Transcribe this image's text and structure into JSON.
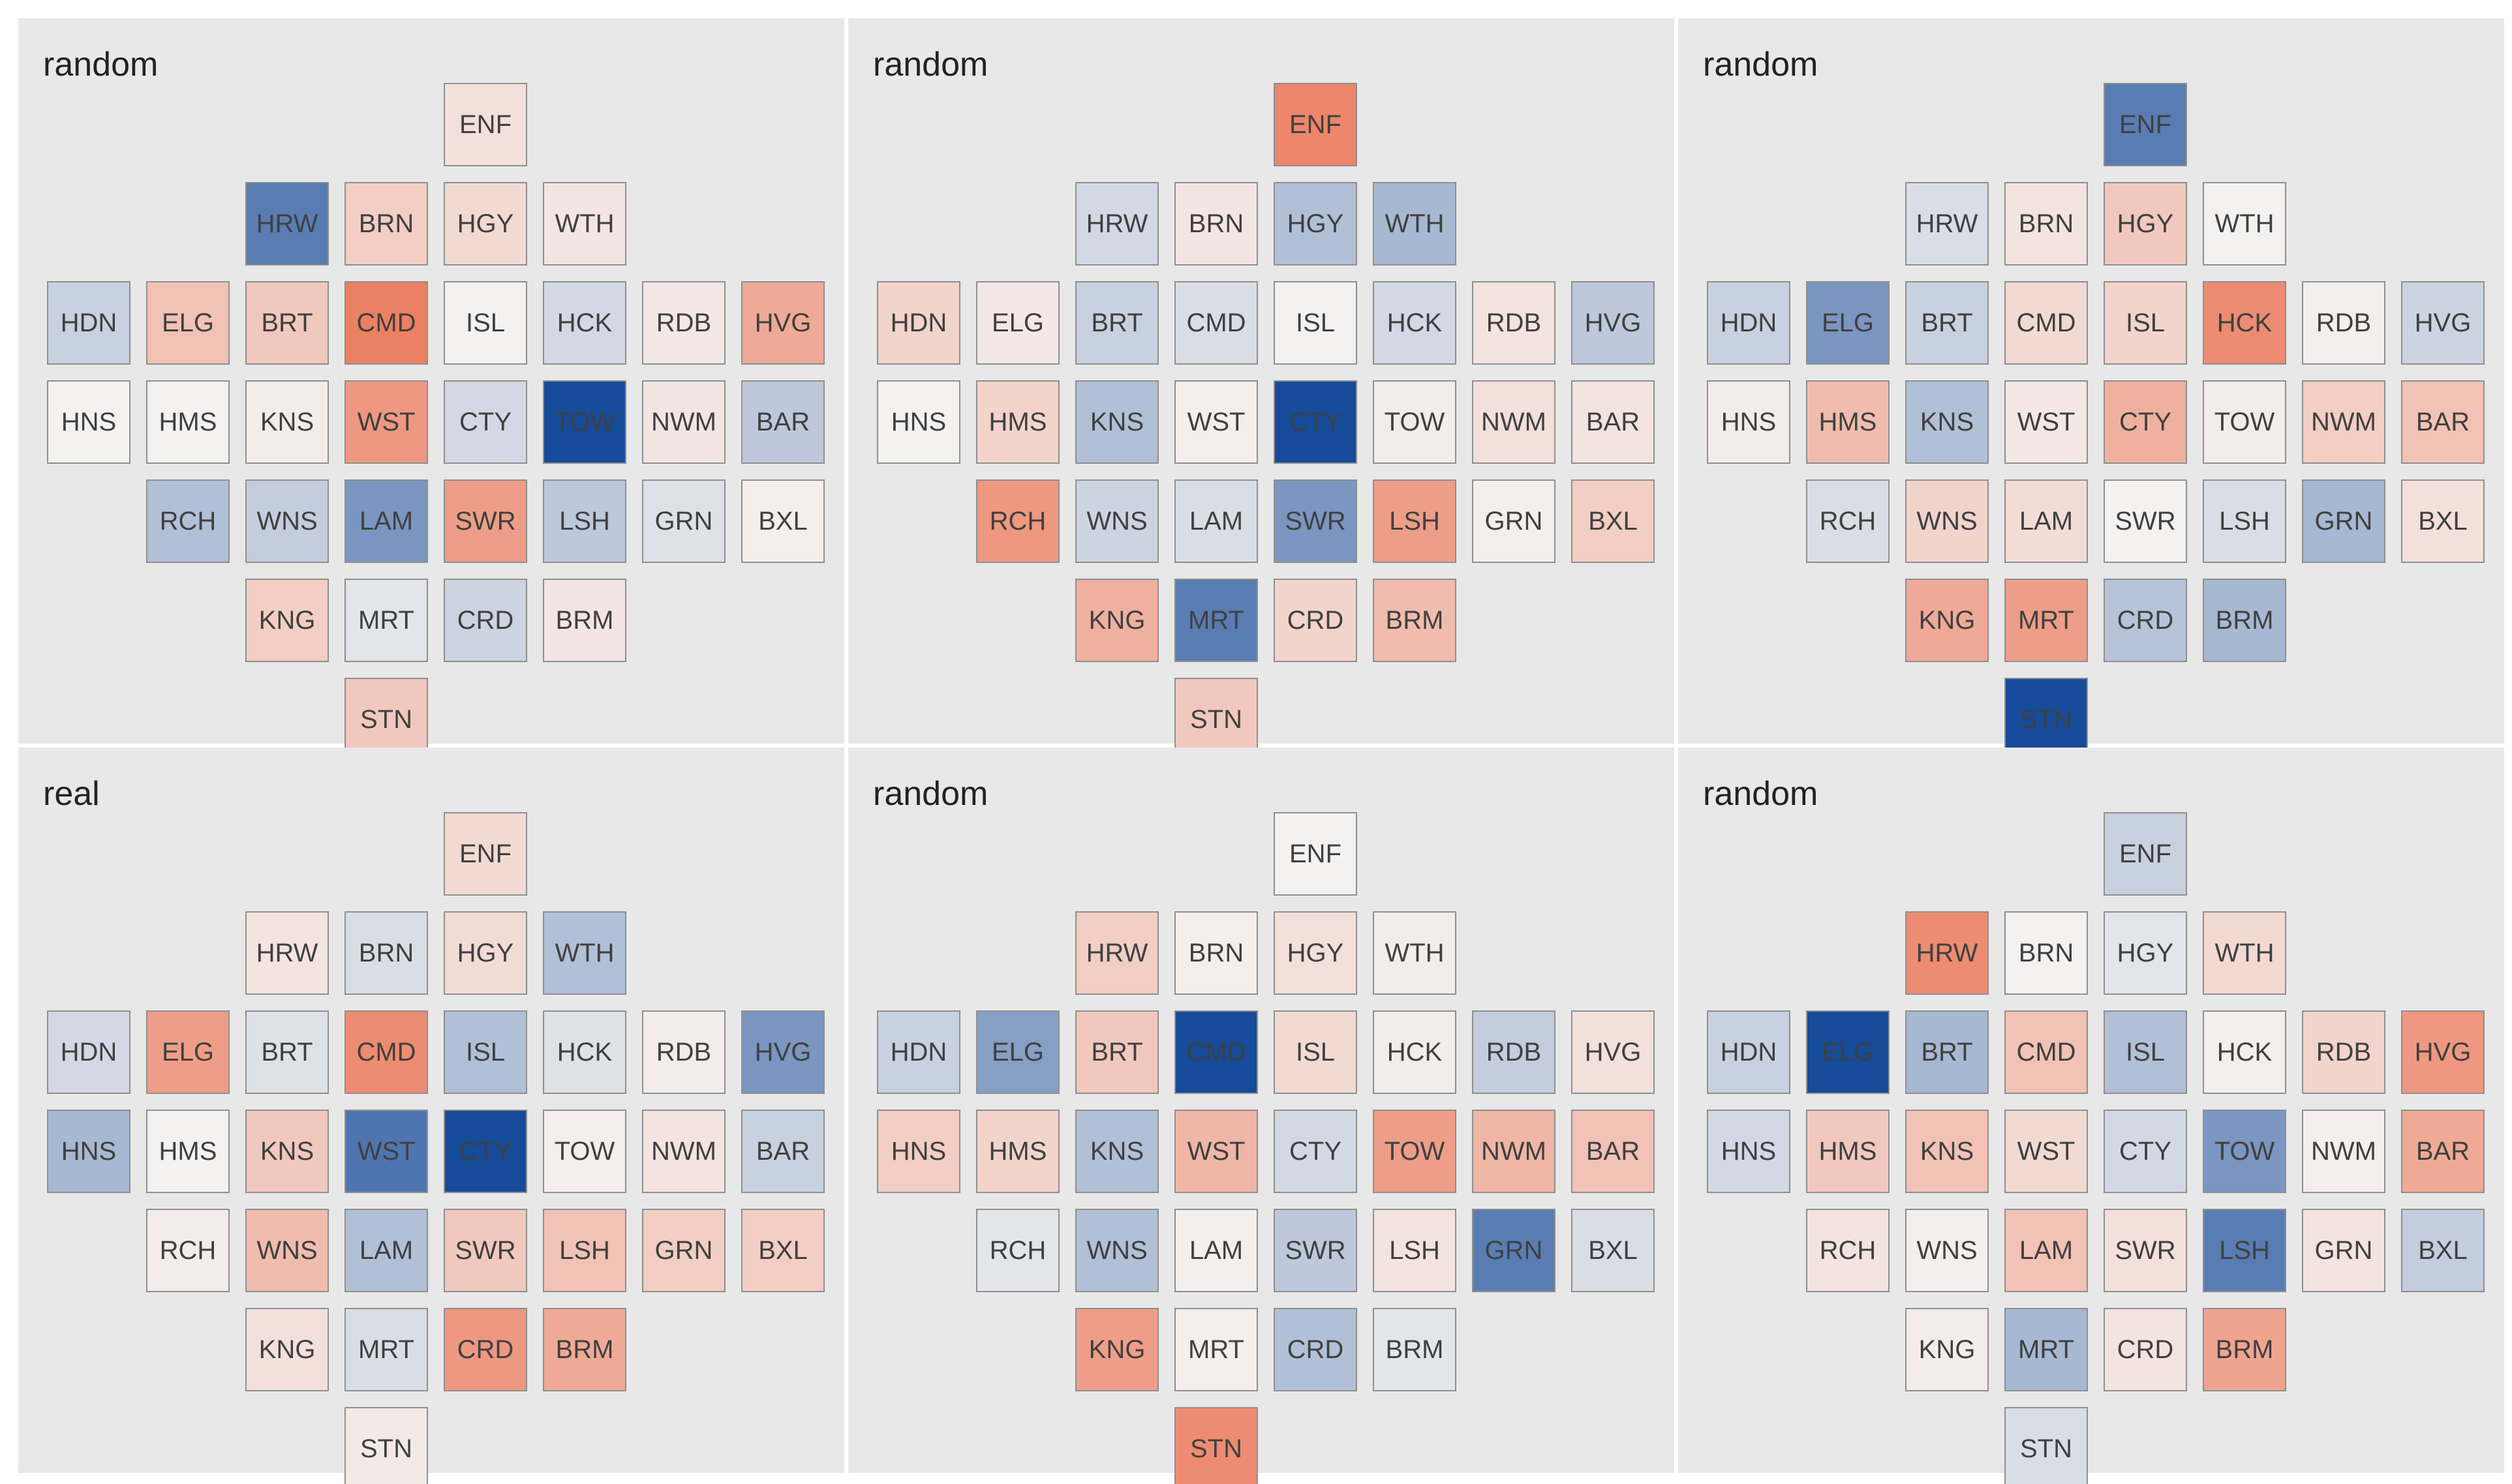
{
  "chart_data": {
    "type": "heatmap",
    "layout": "grid of 6 hexagon-style tile maps of London boroughs",
    "grid": {
      "rows": 2,
      "cols": 3
    },
    "color_scale": {
      "type": "diverging",
      "range": [
        -1,
        1
      ],
      "negative_color": "#164b99",
      "mid_color": "#f4f2f1",
      "positive_color": "#ec7a5b"
    },
    "tile_grid": {
      "ENF": [
        4,
        0
      ],
      "HRW": [
        2,
        1
      ],
      "BRN": [
        3,
        1
      ],
      "HGY": [
        4,
        1
      ],
      "WTH": [
        5,
        1
      ],
      "HDN": [
        0,
        2
      ],
      "ELG": [
        1,
        2
      ],
      "BRT": [
        2,
        2
      ],
      "CMD": [
        3,
        2
      ],
      "ISL": [
        4,
        2
      ],
      "HCK": [
        5,
        2
      ],
      "RDB": [
        6,
        2
      ],
      "HVG": [
        7,
        2
      ],
      "HNS": [
        0,
        3
      ],
      "HMS": [
        1,
        3
      ],
      "KNS": [
        2,
        3
      ],
      "WST": [
        3,
        3
      ],
      "CTY": [
        4,
        3
      ],
      "TOW": [
        5,
        3
      ],
      "NWM": [
        6,
        3
      ],
      "BAR": [
        7,
        3
      ],
      "RCH": [
        1,
        4
      ],
      "WNS": [
        2,
        4
      ],
      "LAM": [
        3,
        4
      ],
      "SWR": [
        4,
        4
      ],
      "LSH": [
        5,
        4
      ],
      "GRN": [
        6,
        4
      ],
      "BXL": [
        7,
        4
      ],
      "KNG": [
        2,
        5
      ],
      "MRT": [
        3,
        5
      ],
      "CRD": [
        4,
        5
      ],
      "BRM": [
        5,
        5
      ],
      "STN": [
        3,
        6
      ]
    },
    "panels": [
      {
        "title": "random",
        "values": {
          "ENF": 0.15,
          "HRW": -0.7,
          "BRN": 0.3,
          "HGY": 0.2,
          "WTH": 0.1,
          "HDN": -0.2,
          "ELG": 0.4,
          "BRT": 0.35,
          "CMD": 0.95,
          "ISL": 0.0,
          "HCK": -0.15,
          "RDB": 0.08,
          "HVG": 0.6,
          "HNS": 0.0,
          "HMS": 0.0,
          "KNS": 0.05,
          "WST": 0.75,
          "CTY": -0.15,
          "TOW": -1.0,
          "NWM": 0.1,
          "BAR": -0.25,
          "RCH": -0.3,
          "WNS": -0.22,
          "LAM": -0.55,
          "SWR": 0.7,
          "LSH": -0.25,
          "GRN": -0.1,
          "BXL": 0.03,
          "KNG": 0.3,
          "MRT": -0.08,
          "CRD": -0.18,
          "BRM": 0.1,
          "STN": 0.35
        }
      },
      {
        "title": "random",
        "values": {
          "ENF": 0.9,
          "HRW": -0.15,
          "BRN": 0.1,
          "HGY": -0.3,
          "WTH": -0.35,
          "HDN": 0.25,
          "ELG": 0.08,
          "BRT": -0.2,
          "CMD": -0.12,
          "ISL": 0.0,
          "HCK": -0.15,
          "RDB": 0.12,
          "HVG": -0.25,
          "HNS": 0.0,
          "HMS": 0.25,
          "KNS": -0.3,
          "WST": 0.03,
          "CTY": -1.0,
          "TOW": 0.05,
          "NWM": 0.15,
          "BAR": 0.12,
          "RCH": 0.75,
          "WNS": -0.18,
          "LAM": -0.12,
          "SWR": -0.55,
          "LSH": 0.7,
          "GRN": 0.03,
          "BXL": 0.3,
          "KNG": 0.55,
          "MRT": -0.7,
          "CRD": 0.25,
          "BRM": 0.45,
          "STN": 0.35
        }
      },
      {
        "title": "random",
        "values": {
          "ENF": -0.7,
          "HRW": -0.12,
          "BRN": 0.12,
          "HGY": 0.35,
          "WTH": 0.0,
          "HDN": -0.2,
          "ELG": -0.55,
          "BRT": -0.2,
          "CMD": 0.2,
          "ISL": 0.25,
          "HCK": 0.85,
          "RDB": 0.03,
          "HVG": -0.18,
          "HNS": 0.05,
          "HMS": 0.45,
          "KNS": -0.3,
          "WST": 0.08,
          "CTY": 0.55,
          "TOW": 0.05,
          "NWM": 0.3,
          "BAR": 0.4,
          "RCH": -0.12,
          "WNS": 0.25,
          "LAM": 0.18,
          "SWR": 0.0,
          "LSH": -0.12,
          "GRN": -0.35,
          "BXL": 0.15,
          "KNG": 0.6,
          "MRT": 0.7,
          "CRD": -0.28,
          "BRM": -0.35,
          "STN": -1.0
        }
      },
      {
        "title": "real",
        "values": {
          "ENF": 0.2,
          "HRW": 0.12,
          "BRN": -0.12,
          "HGY": 0.18,
          "WTH": -0.3,
          "HDN": -0.15,
          "ELG": 0.7,
          "BRT": -0.1,
          "CMD": 0.85,
          "ISL": -0.3,
          "HCK": -0.1,
          "RDB": 0.05,
          "HVG": -0.55,
          "HNS": -0.35,
          "HMS": 0.0,
          "KNS": 0.35,
          "WST": -0.75,
          "CTY": -1.0,
          "TOW": 0.03,
          "NWM": 0.12,
          "BAR": -0.2,
          "RCH": 0.05,
          "WNS": 0.45,
          "LAM": -0.3,
          "SWR": 0.35,
          "LSH": 0.4,
          "GRN": 0.3,
          "BXL": 0.3,
          "KNG": 0.15,
          "MRT": -0.12,
          "CRD": 0.75,
          "BRM": 0.6,
          "STN": 0.07
        }
      },
      {
        "title": "random",
        "values": {
          "ENF": 0.0,
          "HRW": 0.3,
          "BRN": 0.03,
          "HGY": 0.15,
          "WTH": 0.05,
          "HDN": -0.2,
          "ELG": -0.5,
          "BRT": 0.35,
          "CMD": -1.0,
          "ISL": 0.2,
          "HCK": 0.05,
          "RDB": -0.22,
          "HVG": 0.15,
          "HNS": 0.3,
          "HMS": 0.25,
          "KNS": -0.3,
          "WST": 0.5,
          "CTY": -0.15,
          "TOW": 0.7,
          "NWM": 0.5,
          "BAR": 0.4,
          "RCH": -0.08,
          "WNS": -0.3,
          "LAM": 0.03,
          "SWR": -0.25,
          "LSH": 0.12,
          "GRN": -0.7,
          "BXL": -0.12,
          "KNG": 0.7,
          "MRT": 0.03,
          "CRD": -0.3,
          "BRM": -0.08,
          "STN": 0.85
        }
      },
      {
        "title": "random",
        "values": {
          "ENF": -0.2,
          "HRW": 0.85,
          "BRN": 0.0,
          "HGY": -0.08,
          "WTH": 0.2,
          "HDN": -0.2,
          "ELG": -1.0,
          "BRT": -0.35,
          "CMD": 0.4,
          "ISL": -0.3,
          "HCK": 0.03,
          "RDB": 0.25,
          "HVG": 0.75,
          "HNS": -0.15,
          "HMS": 0.35,
          "KNS": 0.4,
          "WST": 0.2,
          "CTY": -0.15,
          "TOW": -0.55,
          "NWM": 0.03,
          "BAR": 0.6,
          "RCH": 0.12,
          "WNS": 0.03,
          "LAM": 0.4,
          "SWR": 0.15,
          "LSH": -0.7,
          "GRN": 0.12,
          "BXL": -0.22,
          "KNG": 0.05,
          "MRT": -0.35,
          "CRD": 0.12,
          "BRM": 0.65,
          "STN": -0.12
        }
      }
    ]
  }
}
